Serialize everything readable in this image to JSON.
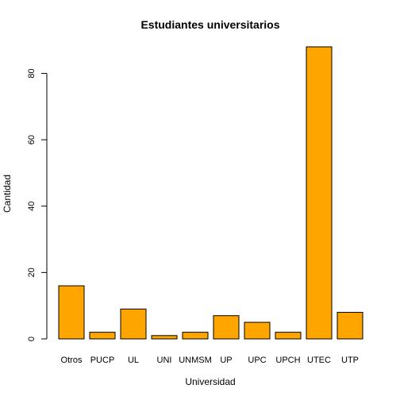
{
  "chart_data": {
    "type": "bar",
    "title": "Estudiantes universitarios",
    "xlabel": "Universidad",
    "ylabel": "Cantidad",
    "categories": [
      "Otros",
      "PUCP",
      "UL",
      "UNI",
      "UNMSM",
      "UP",
      "UPC",
      "UPCH",
      "UTEC",
      "UTP"
    ],
    "values": [
      16,
      2,
      9,
      1,
      2,
      7,
      5,
      2,
      88,
      8
    ],
    "ylim": [
      0,
      88
    ],
    "yticks": [
      0,
      20,
      40,
      60,
      80
    ],
    "bar_color": "#FFA500",
    "grid": false
  }
}
